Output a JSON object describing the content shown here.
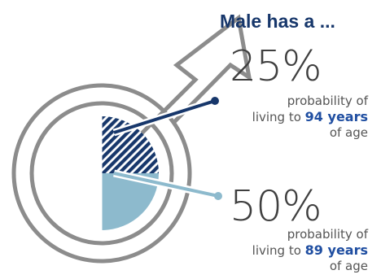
{
  "heading": "Male has a ...",
  "chart_data": {
    "type": "pie",
    "title": "Male has a ...",
    "series": [
      {
        "percent": "25%",
        "value": 25,
        "line1": "probability of",
        "line2_prefix": "living to ",
        "age": "94 years",
        "line3": "of age",
        "color": "#17376b",
        "pattern": "hatched"
      },
      {
        "percent": "50%",
        "value": 50,
        "line1": "probability of",
        "line2_prefix": "living to ",
        "age": "89 years",
        "line3": "of age",
        "color": "#8dbacd",
        "pattern": "solid"
      }
    ]
  },
  "colors": {
    "symbol_gray": "#8c8c8c",
    "dark_navy": "#17376b",
    "light_blue": "#8dbacd",
    "text_gray": "#555555"
  }
}
